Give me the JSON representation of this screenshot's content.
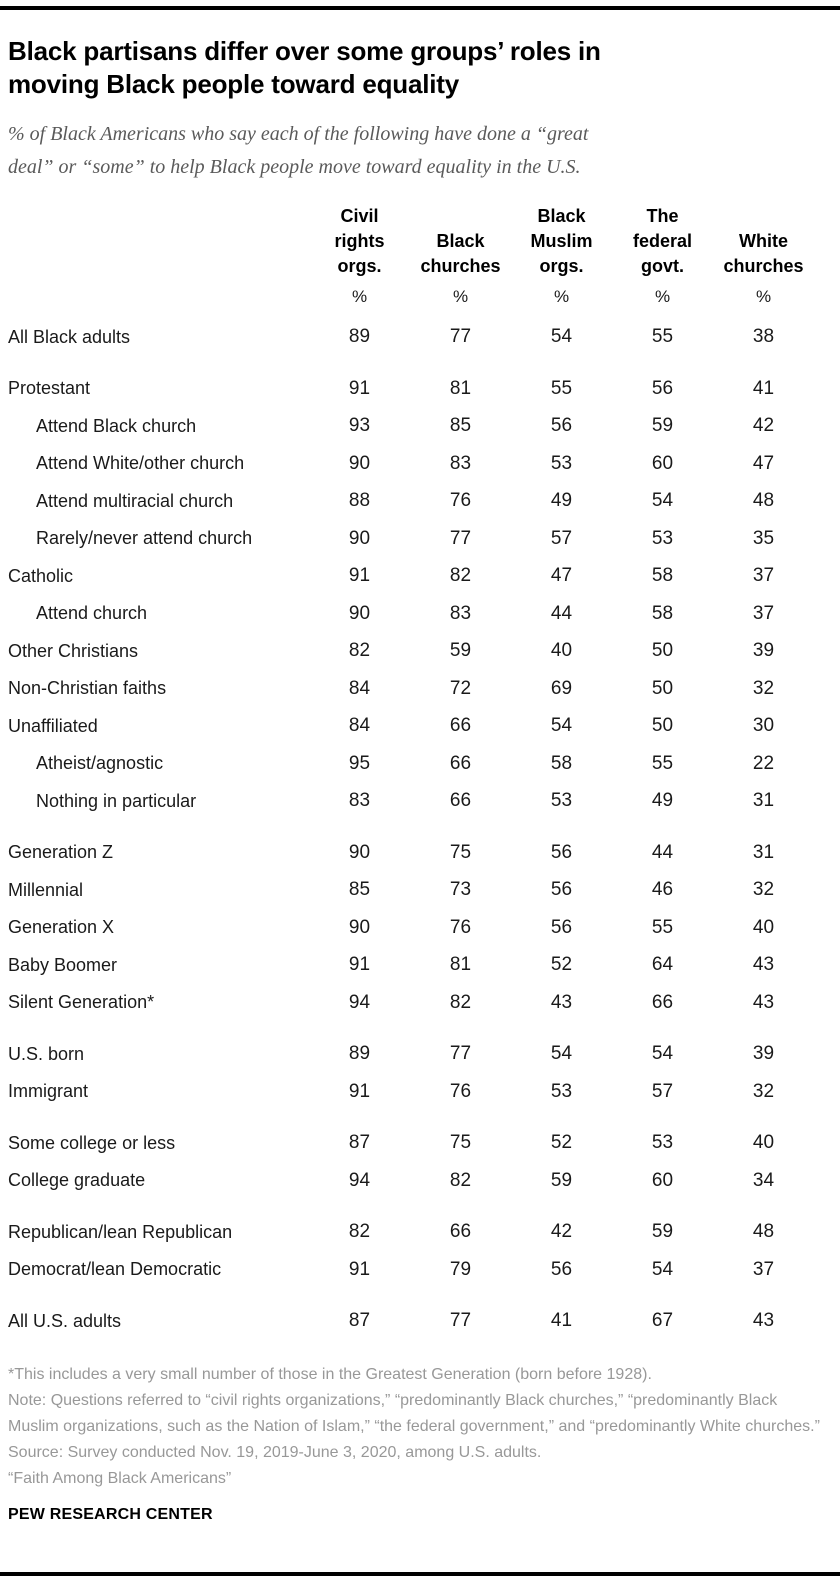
{
  "header": {
    "title": "Black partisans differ over some groups’ roles in\nmoving Black people toward equality",
    "subtitle": "% of Black Americans who say each of the following have done a “great\ndeal” or “some” to help Black people move toward equality in the U.S."
  },
  "chart_data": {
    "type": "table",
    "columns": [
      "Civil rights orgs.",
      "Black churches",
      "Black Muslim orgs.",
      "The federal govt.",
      "White churches"
    ],
    "column_lines": [
      "Civil\nrights\norgs.",
      "Black\nchurches",
      "Black\nMuslim\norgs.",
      "The\nfederal\ngovt.",
      "White\nchurches"
    ],
    "unit": "%",
    "rows": [
      {
        "label": "All Black adults",
        "indent": false,
        "gap": false,
        "values": [
          89,
          77,
          54,
          55,
          38
        ]
      },
      {
        "label": "Protestant",
        "indent": false,
        "gap": true,
        "values": [
          91,
          81,
          55,
          56,
          41
        ]
      },
      {
        "label": "Attend Black church",
        "indent": true,
        "gap": false,
        "values": [
          93,
          85,
          56,
          59,
          42
        ]
      },
      {
        "label": "Attend White/other church",
        "indent": true,
        "gap": false,
        "values": [
          90,
          83,
          53,
          60,
          47
        ]
      },
      {
        "label": "Attend multiracial church",
        "indent": true,
        "gap": false,
        "values": [
          88,
          76,
          49,
          54,
          48
        ]
      },
      {
        "label": "Rarely/never attend church",
        "indent": true,
        "gap": false,
        "values": [
          90,
          77,
          57,
          53,
          35
        ]
      },
      {
        "label": "Catholic",
        "indent": false,
        "gap": false,
        "values": [
          91,
          82,
          47,
          58,
          37
        ]
      },
      {
        "label": "Attend church",
        "indent": true,
        "gap": false,
        "values": [
          90,
          83,
          44,
          58,
          37
        ]
      },
      {
        "label": "Other Christians",
        "indent": false,
        "gap": false,
        "values": [
          82,
          59,
          40,
          50,
          39
        ]
      },
      {
        "label": "Non-Christian faiths",
        "indent": false,
        "gap": false,
        "values": [
          84,
          72,
          69,
          50,
          32
        ]
      },
      {
        "label": "Unaffiliated",
        "indent": false,
        "gap": false,
        "values": [
          84,
          66,
          54,
          50,
          30
        ]
      },
      {
        "label": "Atheist/agnostic",
        "indent": true,
        "gap": false,
        "values": [
          95,
          66,
          58,
          55,
          22
        ]
      },
      {
        "label": "Nothing in particular",
        "indent": true,
        "gap": false,
        "values": [
          83,
          66,
          53,
          49,
          31
        ]
      },
      {
        "label": "Generation Z",
        "indent": false,
        "gap": true,
        "values": [
          90,
          75,
          56,
          44,
          31
        ]
      },
      {
        "label": "Millennial",
        "indent": false,
        "gap": false,
        "values": [
          85,
          73,
          56,
          46,
          32
        ]
      },
      {
        "label": "Generation X",
        "indent": false,
        "gap": false,
        "values": [
          90,
          76,
          56,
          55,
          40
        ]
      },
      {
        "label": "Baby Boomer",
        "indent": false,
        "gap": false,
        "values": [
          91,
          81,
          52,
          64,
          43
        ]
      },
      {
        "label": "Silent Generation*",
        "indent": false,
        "gap": false,
        "values": [
          94,
          82,
          43,
          66,
          43
        ]
      },
      {
        "label": "U.S. born",
        "indent": false,
        "gap": true,
        "values": [
          89,
          77,
          54,
          54,
          39
        ]
      },
      {
        "label": "Immigrant",
        "indent": false,
        "gap": false,
        "values": [
          91,
          76,
          53,
          57,
          32
        ]
      },
      {
        "label": "Some college or less",
        "indent": false,
        "gap": true,
        "values": [
          87,
          75,
          52,
          53,
          40
        ]
      },
      {
        "label": "College graduate",
        "indent": false,
        "gap": false,
        "values": [
          94,
          82,
          59,
          60,
          34
        ]
      },
      {
        "label": "Republican/lean Republican",
        "indent": false,
        "gap": true,
        "values": [
          82,
          66,
          42,
          59,
          48
        ]
      },
      {
        "label": "Democrat/lean Democratic",
        "indent": false,
        "gap": false,
        "values": [
          91,
          79,
          56,
          54,
          37
        ]
      },
      {
        "label": "All U.S. adults",
        "indent": false,
        "gap": true,
        "values": [
          87,
          77,
          41,
          67,
          43
        ]
      }
    ]
  },
  "footnotes": [
    "*This includes a very small number of those in the Greatest Generation (born before 1928).",
    "Note: Questions referred to “civil rights organizations,” “predominantly Black churches,” “predominantly Black Muslim organizations, such as the Nation of Islam,” “the federal government,” and “predominantly White churches.”",
    "Source: Survey conducted Nov. 19, 2019-June 3, 2020, among U.S. adults.",
    "“Faith Among Black Americans”"
  ],
  "branding": "PEW RESEARCH CENTER",
  "colors": {
    "rule": "#000000",
    "title": "#000000",
    "subtitle": "#5a5a5a",
    "table_text": "#1a1a1a",
    "footnote": "#989898"
  }
}
